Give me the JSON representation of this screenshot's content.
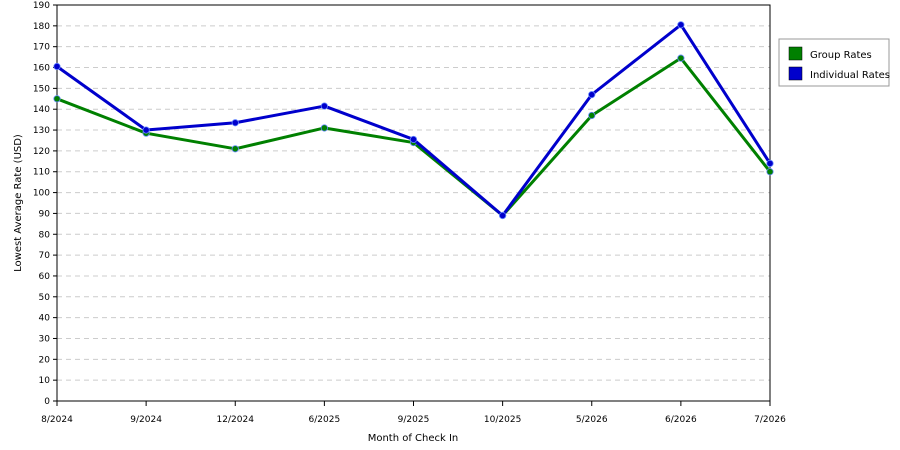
{
  "chart_data": {
    "type": "line",
    "title": "",
    "xlabel": "Month of Check In",
    "ylabel": "Lowest Average Rate (USD)",
    "ylim": [
      0,
      190
    ],
    "yticks": [
      0,
      10,
      20,
      30,
      40,
      50,
      60,
      70,
      80,
      90,
      100,
      110,
      120,
      130,
      140,
      150,
      160,
      170,
      180,
      190
    ],
    "grid": "horizontal dashed",
    "legend_position": "right",
    "categories": [
      "8/2024",
      "9/2024",
      "12/2024",
      "6/2025",
      "9/2025",
      "10/2025",
      "5/2026",
      "6/2026",
      "7/2026"
    ],
    "series": [
      {
        "name": "Group Rates",
        "color": "#008000",
        "values": [
          145,
          128.5,
          121,
          131,
          124,
          89,
          137,
          164.5,
          110
        ]
      },
      {
        "name": "Individual Rates",
        "color": "#0000cc",
        "values": [
          160.5,
          130,
          133.5,
          141.5,
          125.5,
          89,
          147,
          180.5,
          114
        ]
      }
    ]
  }
}
